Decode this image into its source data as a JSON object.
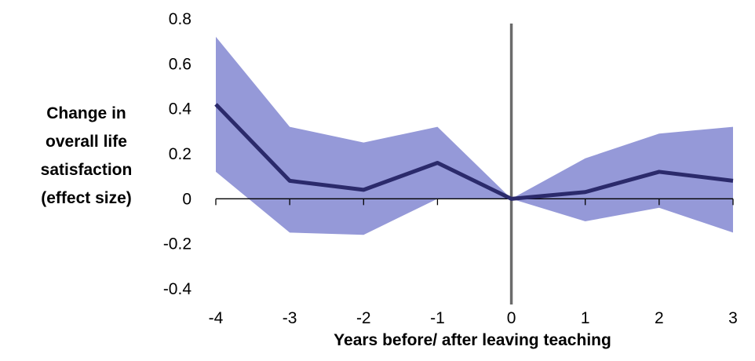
{
  "chart_data": {
    "type": "line",
    "x": [
      -4,
      -3,
      -2,
      -1,
      0,
      1,
      2,
      3
    ],
    "series": [
      {
        "values": [
          0.42,
          0.08,
          0.04,
          0.16,
          0.0,
          0.03,
          0.12,
          0.08
        ]
      }
    ],
    "band": {
      "upper": [
        0.72,
        0.32,
        0.25,
        0.32,
        0.0,
        0.18,
        0.29,
        0.32
      ],
      "lower": [
        0.12,
        -0.15,
        -0.16,
        0.0,
        0.0,
        -0.1,
        -0.04,
        -0.15
      ]
    },
    "xlabel": "Years before/ after leaving teaching",
    "ylabel_lines": [
      "Change in",
      "overall life",
      "satisfaction",
      "(effect size)"
    ],
    "ylim": [
      -0.4,
      0.8
    ],
    "xlim": [
      -4,
      3
    ],
    "y_ticks": [
      -0.4,
      -0.2,
      0,
      0.2,
      0.4,
      0.6,
      0.8
    ],
    "y_tick_labels": [
      "-0.4",
      "-0.2",
      "0",
      "0.2",
      "0.4",
      "0.6",
      "0.8"
    ],
    "x_tick_labels": [
      "-4",
      "-3",
      "-2",
      "-1",
      "0",
      "1",
      "2",
      "3"
    ],
    "vline_x": 0,
    "grid": false,
    "colors": {
      "line": "#2b2a6b",
      "band": "#9599d8",
      "vline": "#6b6b6b",
      "axis": "#000000"
    }
  }
}
